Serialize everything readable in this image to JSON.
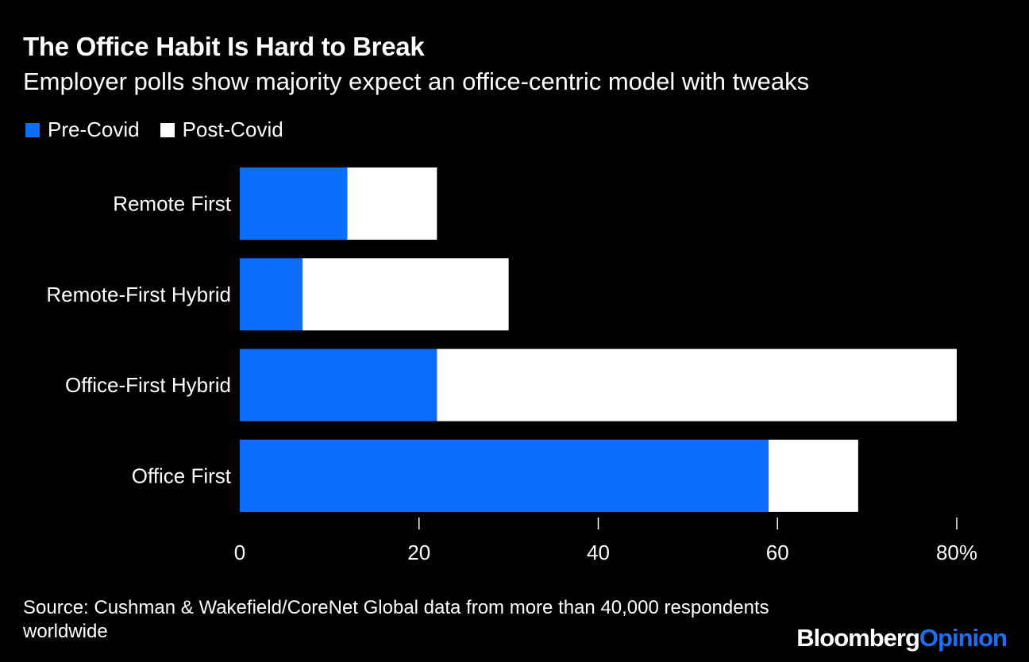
{
  "title": "The Office Habit Is Hard to Break",
  "subtitle": "Employer polls show majority expect an office-centric model with tweaks",
  "colors": {
    "background": "#000000",
    "pre": "#0d6efd",
    "post": "#ffffff",
    "text": "#ffffff"
  },
  "legend": [
    {
      "label": "Pre-Covid",
      "color": "#0d6efd"
    },
    {
      "label": "Post-Covid",
      "color": "#ffffff"
    }
  ],
  "chart_data": {
    "type": "bar",
    "orientation": "horizontal",
    "stacked": true,
    "categories": [
      "Remote First",
      "Remote-First Hybrid",
      "Office-First Hybrid",
      "Office First"
    ],
    "series": [
      {
        "name": "Pre-Covid",
        "values": [
          12,
          7,
          22,
          59
        ]
      },
      {
        "name": "Post-Covid",
        "values": [
          10,
          23,
          58,
          10
        ]
      }
    ],
    "xlim": [
      0,
      80
    ],
    "xticks": [
      0,
      20,
      40,
      60,
      80
    ],
    "xtick_labels": [
      "0",
      "20",
      "40",
      "60",
      "80%"
    ],
    "grid": false,
    "legend_position": "top-left"
  },
  "source": "Source: Cushman & Wakefield/CoreNet Global data from more than 40,000 respondents worldwide",
  "brand": {
    "part1": "Bloomberg",
    "part2": "Opinion"
  }
}
